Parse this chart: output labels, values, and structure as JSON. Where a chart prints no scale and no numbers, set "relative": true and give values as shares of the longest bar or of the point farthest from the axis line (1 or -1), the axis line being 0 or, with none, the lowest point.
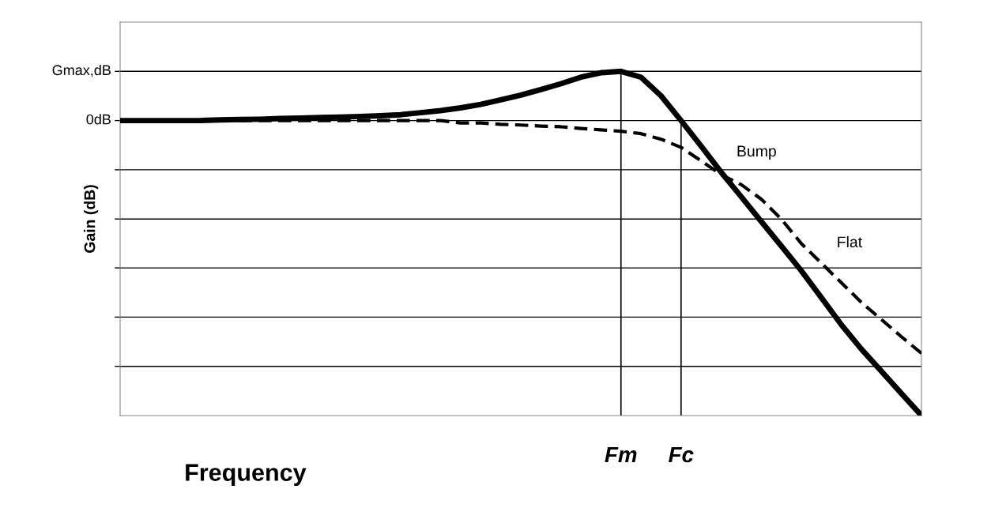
{
  "chart_data": {
    "type": "line",
    "xlabel": "Frequency",
    "ylabel": "Gain (dB)",
    "relative": true,
    "categories": [
      null,
      null,
      null,
      null,
      null,
      null,
      null,
      null,
      null,
      null,
      null,
      null,
      null,
      null,
      null,
      null,
      null,
      null,
      null,
      null,
      null,
      null,
      null,
      null,
      null,
      "Fm",
      null,
      null,
      "Fc",
      null,
      null,
      null,
      null,
      null,
      null,
      null,
      null,
      null,
      null,
      null,
      null
    ],
    "series": [
      {
        "name": "Bump",
        "color": "#000000",
        "line_style": "solid",
        "values": [
          0.857,
          0.857,
          0.857,
          0.857,
          0.857,
          0.859,
          0.86,
          0.861,
          0.863,
          0.864,
          0.866,
          0.867,
          0.869,
          0.871,
          0.874,
          0.88,
          0.886,
          0.894,
          0.904,
          0.917,
          0.931,
          0.947,
          0.964,
          0.983,
          0.996,
          1.0,
          0.983,
          0.929,
          0.857,
          0.783,
          0.707,
          0.636,
          0.564,
          0.493,
          0.421,
          0.343,
          0.264,
          0.193,
          0.129,
          0.064,
          0
        ]
      },
      {
        "name": "Flat",
        "color": "#000000",
        "line_style": "dashed",
        "values": [
          0.857,
          0.857,
          0.857,
          0.857,
          0.857,
          0.857,
          0.857,
          0.857,
          0.857,
          0.857,
          0.857,
          0.857,
          0.857,
          0.857,
          0.857,
          0.857,
          0.857,
          0.85,
          0.85,
          0.846,
          0.844,
          0.841,
          0.839,
          0.834,
          0.83,
          0.826,
          0.819,
          0.803,
          0.779,
          0.74,
          0.7,
          0.671,
          0.629,
          0.571,
          0.5,
          0.443,
          0.386,
          0.329,
          0.279,
          0.229,
          0.181
        ]
      }
    ],
    "legend": false,
    "marker": "none",
    "ref_lines": [
      {
        "axis": "x",
        "value": "Fm",
        "color": "#000000"
      },
      {
        "axis": "x",
        "value": "Fc",
        "color": "#000000"
      },
      {
        "axis": "y",
        "value": 1,
        "label": "Gmax,dB",
        "color": "#000000"
      },
      {
        "axis": "y",
        "value": 0.857,
        "label": "0dB",
        "color": "#000000"
      },
      {
        "axis": "y",
        "value": 0.714,
        "color": "#000000"
      },
      {
        "axis": "y",
        "value": 0.571,
        "color": "#000000"
      },
      {
        "axis": "y",
        "value": 0.429,
        "color": "#000000"
      },
      {
        "axis": "y",
        "value": 0.286,
        "color": "#000000"
      },
      {
        "axis": "y",
        "value": 0.143,
        "color": "#000000"
      }
    ]
  }
}
